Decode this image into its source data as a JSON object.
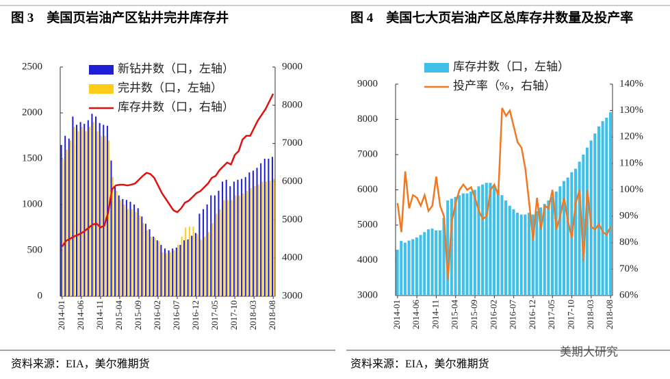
{
  "chart_data": [
    {
      "type": "bar",
      "title": "图 3　美国页岩油产区钻井完井库存井",
      "source": "资料来源：EIA，美尔雅期货",
      "categories": [
        "2014-01",
        null,
        null,
        null,
        null,
        "2014-06",
        null,
        null,
        null,
        null,
        "2014-11",
        null,
        null,
        null,
        null,
        "2015-04",
        null,
        null,
        null,
        null,
        "2015-09",
        null,
        null,
        null,
        null,
        "2016-02",
        null,
        null,
        null,
        null,
        "2016-07",
        null,
        null,
        null,
        null,
        "2016-12",
        null,
        null,
        null,
        null,
        "2017-05",
        null,
        null,
        null,
        null,
        "2017-10",
        null,
        null,
        null,
        null,
        "2018-03",
        null,
        null,
        null,
        null,
        "2018-08"
      ],
      "series": [
        {
          "name": "新钻井数（口，左轴）",
          "type": "bar",
          "color": "#1f1fd6",
          "values": [
            1650,
            1750,
            1720,
            1960,
            1870,
            1900,
            1880,
            1920,
            1990,
            1960,
            1890,
            1870,
            1860,
            1480,
            1190,
            1100,
            1060,
            1050,
            1030,
            1000,
            960,
            870,
            790,
            730,
            650,
            610,
            560,
            520,
            500,
            520,
            530,
            560,
            610,
            620,
            660,
            690,
            900,
            950,
            1000,
            1100,
            1100,
            1150,
            1250,
            1270,
            1200,
            1250,
            1270,
            1280,
            1300,
            1350,
            1370,
            1400,
            1450,
            1500,
            1500,
            1520
          ]
        },
        {
          "name": "完井数（口，左轴）",
          "type": "bar",
          "color": "#ffcc1a",
          "values": [
            1500,
            1600,
            1700,
            1850,
            1800,
            1850,
            1800,
            1850,
            1900,
            1800,
            1750,
            1750,
            1700,
            1300,
            1150,
            1050,
            1000,
            950,
            950,
            920,
            880,
            800,
            720,
            650,
            640,
            600,
            480,
            470,
            480,
            500,
            560,
            650,
            750,
            760,
            760,
            680,
            620,
            650,
            700,
            800,
            900,
            950,
            1050,
            1050,
            1050,
            1100,
            1100,
            1120,
            1150,
            1180,
            1200,
            1220,
            1250,
            1250,
            1260,
            1280
          ]
        },
        {
          "name": "库存井数（口，右轴）",
          "type": "line",
          "axis": "y2",
          "color": "#e01010",
          "values": [
            4300,
            4450,
            4500,
            4560,
            4600,
            4650,
            4720,
            4800,
            4880,
            4900,
            4800,
            4850,
            5200,
            5800,
            5900,
            5920,
            5920,
            5900,
            5920,
            5950,
            6050,
            6150,
            6230,
            6200,
            6100,
            5900,
            5700,
            5550,
            5400,
            5250,
            5200,
            5300,
            5450,
            5500,
            5600,
            5700,
            5750,
            5850,
            5950,
            6100,
            6150,
            6300,
            6400,
            6500,
            6450,
            6700,
            6800,
            7100,
            7200,
            7200,
            7400,
            7600,
            7750,
            7900,
            8100,
            8300
          ]
        }
      ],
      "ylim": [
        0,
        2500
      ],
      "yticks": [
        0,
        500,
        1000,
        1500,
        2000,
        2500
      ],
      "y2lim": [
        3000,
        9000
      ],
      "y2ticks": [
        3000,
        4000,
        5000,
        6000,
        7000,
        8000,
        9000
      ]
    },
    {
      "type": "bar",
      "title": "图 4　美国七大页岩油产区总库存井数量及投产率",
      "source": "资料来源：EIA，美尔雅期货",
      "categories": [
        "2014-01",
        null,
        null,
        null,
        null,
        "2014-06",
        null,
        null,
        null,
        null,
        "2014-11",
        null,
        null,
        null,
        null,
        "2015-04",
        null,
        null,
        null,
        null,
        "2015-09",
        null,
        null,
        null,
        null,
        "2016-02",
        null,
        null,
        null,
        null,
        "2016-07",
        null,
        null,
        null,
        null,
        "2016-12",
        null,
        null,
        null,
        null,
        "2017-05",
        null,
        null,
        null,
        null,
        "2017-10",
        null,
        null,
        null,
        null,
        "2018-03",
        null,
        null,
        null,
        null,
        "2018-08"
      ],
      "series": [
        {
          "name": "库存井数（口，左轴）",
          "type": "bar",
          "color": "#3fc0e8",
          "values": [
            4300,
            4550,
            4500,
            4560,
            4600,
            4650,
            4720,
            4800,
            4880,
            4900,
            4850,
            4850,
            5200,
            5700,
            5750,
            5800,
            5850,
            5900,
            5900,
            5950,
            6000,
            6100,
            6150,
            6200,
            6200,
            6100,
            6000,
            5850,
            5700,
            5550,
            5450,
            5350,
            5300,
            5300,
            5350,
            5300,
            5400,
            5500,
            5600,
            5700,
            5800,
            5950,
            6100,
            6250,
            6350,
            6500,
            6600,
            6800,
            7000,
            7200,
            7400,
            7600,
            7800,
            7950,
            8050,
            8200
          ]
        },
        {
          "name": "投产率（%，右轴）",
          "type": "line",
          "axis": "y2",
          "color": "#f07820",
          "values": [
            95,
            84,
            107,
            93,
            98,
            97,
            94,
            98,
            92,
            94,
            105,
            94,
            90,
            66,
            88,
            95,
            100,
            102,
            100,
            101,
            97,
            92,
            89,
            90,
            100,
            102,
            98,
            131,
            128,
            130,
            124,
            118,
            116,
            108,
            95,
            81,
            97,
            85,
            94,
            93,
            100,
            85,
            90,
            97,
            88,
            82,
            95,
            100,
            73,
            100,
            86,
            85,
            87,
            84,
            83,
            86
          ]
        }
      ],
      "ylim": [
        3000,
        9000
      ],
      "yticks": [
        3000,
        4000,
        5000,
        6000,
        7000,
        8000,
        9000
      ],
      "y2lim": [
        60,
        140
      ],
      "y2ticks": [
        {
          "value": 60,
          "label": "60%"
        },
        {
          "value": 70,
          "label": "70%"
        },
        {
          "value": 80,
          "label": "80%"
        },
        {
          "value": 90,
          "label": "90%"
        },
        {
          "value": 100,
          "label": "100%"
        },
        {
          "value": 110,
          "label": "110%"
        },
        {
          "value": 120,
          "label": "120%"
        },
        {
          "value": 130,
          "label": "130%"
        },
        {
          "value": 140,
          "label": "140%"
        }
      ]
    }
  ],
  "watermark": "美期大研究"
}
